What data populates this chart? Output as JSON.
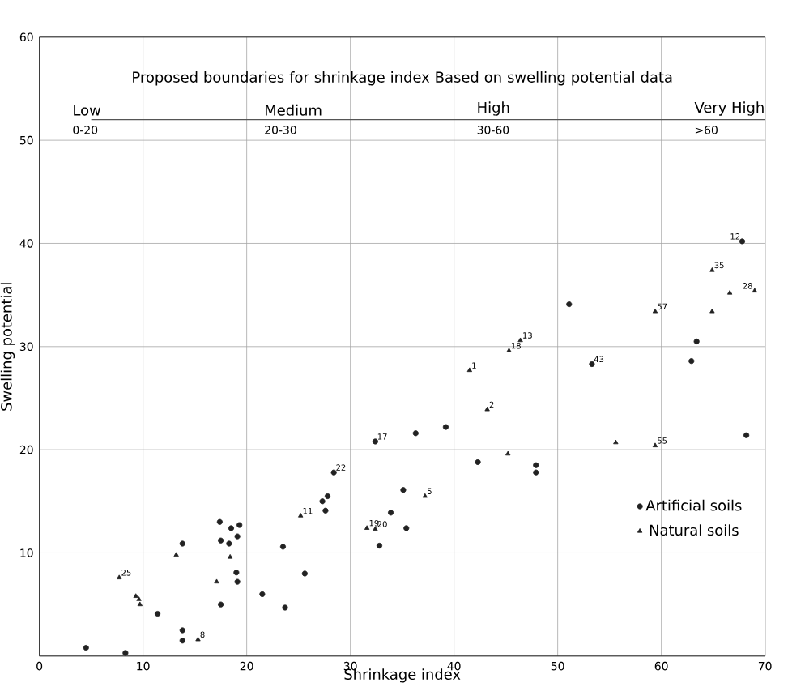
{
  "chart_data": {
    "type": "scatter",
    "xlabel": "Shrinkage index",
    "ylabel": "Swelling potential",
    "xlim": [
      0,
      70
    ],
    "ylim": [
      0,
      60
    ],
    "xticks": [
      0,
      10,
      20,
      30,
      40,
      50,
      60,
      70
    ],
    "yticks": [
      {
        "value": 0,
        "label": null
      },
      10,
      20,
      30,
      40,
      50,
      60
    ],
    "grid": true,
    "legend": "bottom right",
    "series": [
      {
        "name": "Artificial soils",
        "color": "#222222",
        "marker": "circle",
        "x": [
          4.5,
          8.3,
          11.4,
          13.8,
          13.8,
          13.8,
          17.5,
          17.4,
          18.5,
          19.3,
          17.5,
          18.3,
          19.1,
          19.0,
          19.1,
          21.5,
          23.7,
          23.5,
          25.6,
          27.3,
          27.8,
          27.6,
          28.4,
          32.8,
          33.9,
          35.4,
          35.1,
          32.4,
          36.3,
          39.2,
          42.3,
          47.9,
          47.9,
          51.1,
          53.3,
          63.4,
          62.9,
          67.8,
          68.2
        ],
        "values": [
          0.8,
          0.3,
          4.1,
          2.5,
          1.5,
          10.9,
          5.0,
          13.0,
          12.4,
          12.7,
          11.2,
          10.9,
          11.6,
          8.1,
          7.2,
          6.0,
          4.7,
          10.6,
          8.0,
          15.0,
          15.5,
          14.1,
          17.8,
          10.7,
          13.9,
          12.4,
          16.1,
          20.8,
          21.6,
          22.2,
          18.8,
          18.5,
          17.8,
          34.1,
          28.3,
          30.5,
          28.6,
          40.2,
          21.4
        ]
      },
      {
        "name": "Natural soils",
        "color": "#222222",
        "marker": "triangle",
        "x": [
          7.7,
          9.3,
          9.6,
          9.7,
          13.2,
          15.3,
          17.1,
          18.4,
          25.2,
          31.6,
          32.4,
          37.2,
          41.5,
          43.2,
          45.2,
          45.3,
          46.4,
          55.6,
          59.4,
          59.4,
          64.9,
          64.9,
          66.6,
          69.0
        ],
        "values": [
          7.6,
          5.8,
          5.5,
          5.0,
          9.8,
          1.6,
          7.2,
          9.6,
          13.6,
          12.4,
          12.3,
          15.5,
          27.7,
          23.9,
          19.6,
          29.6,
          30.6,
          20.7,
          20.4,
          33.4,
          37.4,
          33.4,
          35.2,
          35.4
        ]
      }
    ],
    "ref_lines": [
      {
        "axis": "y",
        "value": 52,
        "color": "#555555"
      }
    ],
    "annotations": [
      "Proposed boundaries for shrinkage index Based on swelling potential data",
      "Low",
      "0-20",
      "Medium",
      "20-30",
      "High",
      "30-60",
      "Very High",
      ">60",
      {
        "text": "1",
        "x": 41.5,
        "y": 27.7
      },
      {
        "text": "2",
        "x": 43.2,
        "y": 23.9
      },
      {
        "text": "18",
        "x": 45.3,
        "y": 29.6
      },
      {
        "text": "13",
        "x": 46.4,
        "y": 30.6
      },
      {
        "text": "22",
        "x": 28.4,
        "y": 17.8
      },
      {
        "text": "11",
        "x": 25.2,
        "y": 13.6
      },
      {
        "text": "19",
        "x": 31.6,
        "y": 12.4
      },
      {
        "text": "20",
        "x": 32.4,
        "y": 12.3
      },
      {
        "text": "5",
        "x": 37.2,
        "y": 15.5
      },
      {
        "text": "25",
        "x": 7.7,
        "y": 7.6
      },
      {
        "text": "8",
        "x": 15.3,
        "y": 1.6
      },
      {
        "text": "12",
        "x": 67.8,
        "y": 40.2
      },
      {
        "text": "35",
        "x": 64.9,
        "y": 37.4
      },
      {
        "text": "57",
        "x": 59.4,
        "y": 33.4
      },
      {
        "text": "55",
        "x": 59.4,
        "y": 20.4
      },
      {
        "text": "17",
        "x": 32.4,
        "y": 20.8
      },
      {
        "text": "43",
        "x": 53.3,
        "y": 28.3
      },
      {
        "text": "28",
        "x": 69.0,
        "y": 35.4
      }
    ]
  }
}
